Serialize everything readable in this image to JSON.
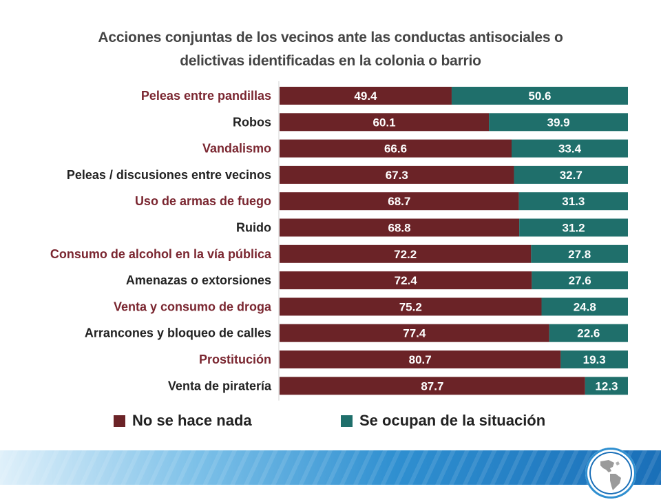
{
  "chart_data": {
    "type": "bar",
    "orientation": "horizontal",
    "stacked": true,
    "title": "Acciones conjuntas de los vecinos ante las conductas antisociales o delictivas identificadas en la colonia o barrio",
    "title_lines": [
      "Acciones conjuntas de los vecinos ante las conductas antisociales o",
      "delictivas identificadas en la colonia o barrio"
    ],
    "categories": [
      "Peleas entre pandillas",
      "Robos",
      "Vandalismo",
      "Peleas / discusiones entre vecinos",
      "Uso de armas de fuego",
      "Ruido",
      "Consumo de alcohol en la vía pública",
      "Amenazas  o extorsiones",
      "Venta y consumo de droga",
      "Arrancones  y bloqueo de calles",
      "Prostitución",
      "Venta de piratería"
    ],
    "category_colors": [
      "#7a2630",
      "#222222",
      "#7a2630",
      "#222222",
      "#7a2630",
      "#222222",
      "#7a2630",
      "#222222",
      "#7a2630",
      "#222222",
      "#7a2630",
      "#222222"
    ],
    "series": [
      {
        "name": "No se hace nada",
        "color": "#6b2327",
        "values": [
          49.4,
          60.1,
          66.6,
          67.3,
          68.7,
          68.8,
          72.2,
          72.4,
          75.2,
          77.4,
          80.7,
          87.7
        ]
      },
      {
        "name": "Se ocupan de la situación",
        "color": "#1f6f6b",
        "values": [
          50.6,
          39.9,
          33.4,
          32.7,
          31.3,
          31.2,
          27.8,
          27.6,
          24.8,
          22.6,
          19.3,
          12.3
        ]
      }
    ],
    "xlim": [
      0,
      100
    ],
    "grid": false,
    "legend_position": "bottom"
  },
  "logo": {
    "icon": "americas-map-icon"
  }
}
